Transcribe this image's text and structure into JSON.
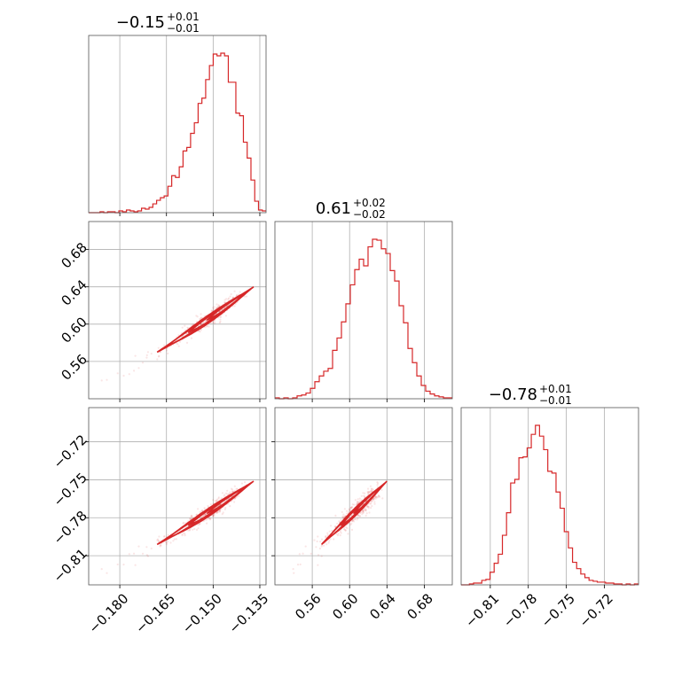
{
  "chart_data": {
    "type": "corner",
    "color": "#d62728",
    "titles": [
      {
        "main": "−0.15",
        "sup": "+0.01",
        "sub": "−0.01"
      },
      {
        "main": "0.61",
        "sup": "+0.02",
        "sub": "−0.02"
      },
      {
        "main": "−0.78",
        "sup": "+0.01",
        "sub": "−0.01"
      }
    ],
    "params": [
      {
        "range": [
          -0.19,
          -0.133
        ],
        "ticks": [
          -0.18,
          -0.165,
          -0.15,
          -0.135
        ],
        "ticklabels": [
          "−0.180",
          "−0.165",
          "−0.150",
          "−0.135"
        ]
      },
      {
        "range": [
          0.52,
          0.71
        ],
        "ticks": [
          0.56,
          0.6,
          0.64,
          0.68
        ],
        "ticklabels": [
          "0.56",
          "0.60",
          "0.64",
          "0.68"
        ]
      },
      {
        "range": [
          -0.833,
          -0.693
        ],
        "ticks": [
          -0.81,
          -0.78,
          -0.75,
          -0.72
        ],
        "ticklabels": [
          "−0.81",
          "−0.78",
          "−0.75",
          "−0.72"
        ]
      }
    ],
    "histograms": [
      {
        "param": 0,
        "values": [
          0,
          0,
          0,
          1,
          0,
          1,
          1,
          0,
          2,
          1,
          3,
          2,
          1,
          2,
          5,
          4,
          6,
          10,
          14,
          17,
          19,
          30,
          42,
          40,
          52,
          70,
          74,
          90,
          102,
          124,
          130,
          151,
          167,
          180,
          178,
          181,
          178,
          148,
          148,
          113,
          110,
          80,
          62,
          37,
          13,
          3,
          2
        ]
      },
      {
        "param": 1,
        "values": [
          1,
          0,
          1,
          0,
          1,
          3,
          4,
          6,
          11,
          18,
          24,
          29,
          32,
          51,
          64,
          81,
          100,
          120,
          136,
          147,
          140,
          160,
          168,
          167,
          158,
          153,
          135,
          124,
          98,
          80,
          53,
          38,
          24,
          14,
          8,
          5,
          3,
          2,
          1,
          1
        ]
      },
      {
        "param": 2,
        "values": [
          0,
          0,
          1,
          2,
          2,
          5,
          6,
          14,
          24,
          34,
          55,
          80,
          113,
          117,
          141,
          142,
          152,
          167,
          177,
          165,
          150,
          126,
          124,
          103,
          85,
          59,
          41,
          25,
          18,
          12,
          8,
          5,
          4,
          3,
          3,
          2,
          2,
          1,
          1,
          0,
          1,
          0,
          1
        ]
      }
    ],
    "scatter": [
      {
        "x_param": 0,
        "y_param": 1,
        "x_key": "−0.15",
        "y_key": "0.61"
      },
      {
        "x_param": 0,
        "y_param": 2,
        "x_key": "−0.15",
        "y_key": "−0.78"
      },
      {
        "x_param": 1,
        "y_param": 2,
        "x_key": "0.61",
        "y_key": "−0.78"
      }
    ],
    "grid": true,
    "legend": "none"
  }
}
